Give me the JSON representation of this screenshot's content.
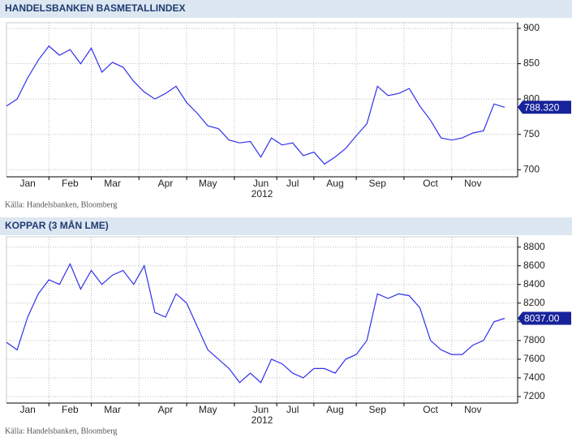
{
  "chart_data": [
    {
      "type": "line",
      "title": "HANDELSBANKEN BASMETALLINDEX",
      "x_label": "2012",
      "source": "Källa: Handelsbanken, Bloomberg",
      "categories": [
        null,
        null,
        "Jan",
        null,
        null,
        null,
        "Feb",
        null,
        null,
        null,
        "Mar",
        null,
        null,
        null,
        null,
        "Apr",
        null,
        null,
        null,
        "May",
        null,
        null,
        null,
        null,
        "Jun",
        null,
        null,
        "Jul",
        null,
        null,
        null,
        "Aug",
        null,
        null,
        null,
        "Sep",
        null,
        null,
        null,
        null,
        "Oct",
        null,
        null,
        null,
        "Nov",
        null,
        null,
        null
      ],
      "series": [
        {
          "color": "#3030ee",
          "values": [
            790,
            800,
            830,
            855,
            875,
            862,
            870,
            850,
            872,
            838,
            852,
            845,
            825,
            810,
            800,
            808,
            818,
            795,
            780,
            762,
            758,
            742,
            738,
            740,
            718,
            745,
            735,
            738,
            720,
            725,
            708,
            718,
            730,
            748,
            765,
            818,
            805,
            808,
            815,
            790,
            770,
            745,
            742,
            745,
            752,
            755,
            793,
            788.32
          ]
        }
      ],
      "ylim": [
        690,
        908
      ],
      "yticks": [
        700,
        750,
        800,
        850,
        900
      ],
      "grid": true,
      "current": {
        "value": 788.32,
        "label": "788.320"
      }
    },
    {
      "type": "line",
      "title": "KOPPAR (3 MÅN LME)",
      "x_label": "2012",
      "source": "Källa: Handelsbanken, Bloomberg",
      "categories": [
        null,
        null,
        "Jan",
        null,
        null,
        null,
        "Feb",
        null,
        null,
        null,
        "Mar",
        null,
        null,
        null,
        null,
        "Apr",
        null,
        null,
        null,
        "May",
        null,
        null,
        null,
        null,
        "Jun",
        null,
        null,
        "Jul",
        null,
        null,
        null,
        "Aug",
        null,
        null,
        null,
        "Sep",
        null,
        null,
        null,
        null,
        "Oct",
        null,
        null,
        null,
        "Nov",
        null,
        null,
        null
      ],
      "series": [
        {
          "color": "#3030ee",
          "values": [
            7780,
            7700,
            8050,
            8300,
            8450,
            8400,
            8620,
            8350,
            8550,
            8400,
            8500,
            8550,
            8400,
            8600,
            8100,
            8050,
            8300,
            8200,
            7950,
            7700,
            7600,
            7500,
            7350,
            7450,
            7350,
            7600,
            7550,
            7450,
            7400,
            7500,
            7500,
            7450,
            7600,
            7650,
            7800,
            8300,
            8250,
            8300,
            8280,
            8150,
            7800,
            7700,
            7650,
            7650,
            7750,
            7800,
            8000,
            8037
          ]
        }
      ],
      "ylim": [
        7130,
        8910
      ],
      "yticks": [
        7200,
        7400,
        7600,
        7800,
        8000,
        8200,
        8400,
        8600,
        8800
      ],
      "grid": true,
      "current": {
        "value": 8037,
        "label": "8037.00"
      }
    }
  ]
}
